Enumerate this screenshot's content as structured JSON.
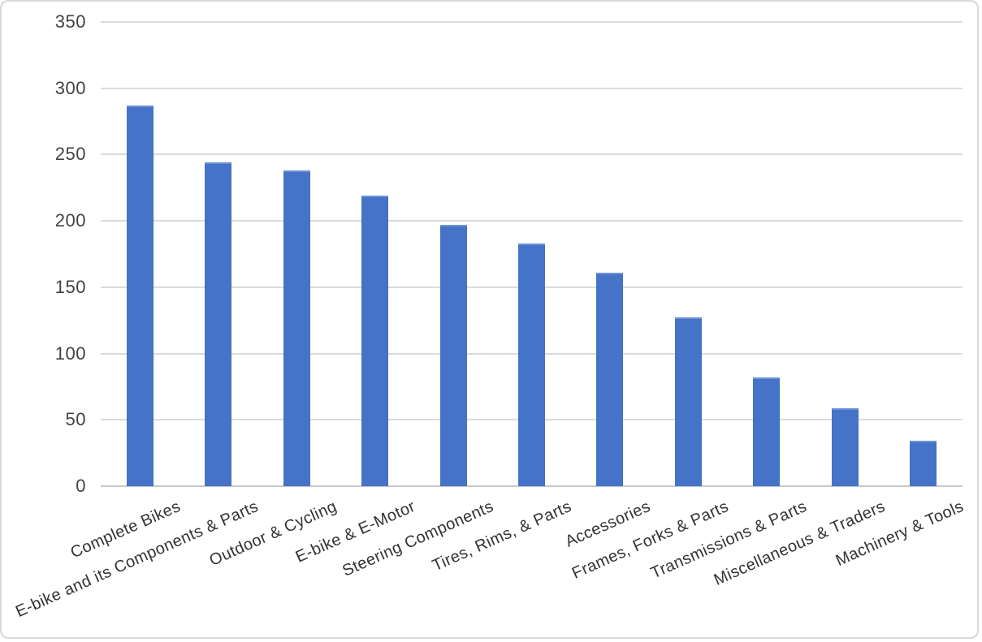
{
  "chart_data": {
    "type": "bar",
    "title": "",
    "xlabel": "",
    "ylabel": "",
    "categories": [
      "Complete Bikes",
      "E-bike and its Components & Parts",
      "Outdoor & Cycling",
      "E-bike & E-Motor",
      "Steering Components",
      "Tires, Rims, & Parts",
      "Accessories",
      "Frames, Forks & Parts",
      "Transmissions & Parts",
      "Miscellaneous & Traders",
      "Machinery & Tools"
    ],
    "values": [
      287,
      244,
      238,
      219,
      197,
      183,
      161,
      127,
      82,
      59,
      34
    ],
    "ylim": [
      0,
      350
    ],
    "yticks": [
      0,
      50,
      100,
      150,
      200,
      250,
      300,
      350
    ],
    "grid": true,
    "legend_position": "none",
    "x_tick_rotation_deg": -24
  },
  "colors": {
    "bar_fill": "#4473c7",
    "bar_edge": "#6d93d6",
    "gridline": "#dbdbdb",
    "axis_line": "#c8c8c8",
    "y_tick_label": "#424242",
    "x_tick_label": "#333333",
    "frame_border": "#d9d9d9",
    "background": "#ffffff"
  }
}
